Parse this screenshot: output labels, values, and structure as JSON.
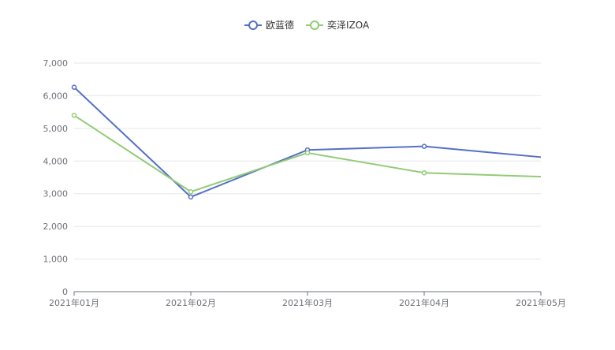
{
  "chart_data": {
    "type": "line",
    "title": "",
    "xlabel": "",
    "ylabel": "",
    "categories": [
      "2021年01月",
      "2021年02月",
      "2021年03月",
      "2021年04月",
      "2021年05月"
    ],
    "ylim": [
      0,
      7000
    ],
    "yticks": [
      0,
      1000,
      2000,
      3000,
      4000,
      5000,
      6000,
      7000
    ],
    "ytick_labels": [
      "0",
      "1,000",
      "2,000",
      "3,000",
      "4,000",
      "5,000",
      "6,000",
      "7,000"
    ],
    "grid": true,
    "legend_position": "top-center",
    "series": [
      {
        "name": "欧蓝德",
        "color": "#5470c6",
        "values": [
          6260,
          2900,
          4340,
          4450,
          4120
        ],
        "show_points": [
          true,
          true,
          true,
          true,
          false
        ]
      },
      {
        "name": "奕泽IZOA",
        "color": "#91cc75",
        "values": [
          5400,
          3060,
          4250,
          3640,
          3520
        ],
        "show_points": [
          true,
          true,
          true,
          true,
          false
        ]
      }
    ]
  }
}
